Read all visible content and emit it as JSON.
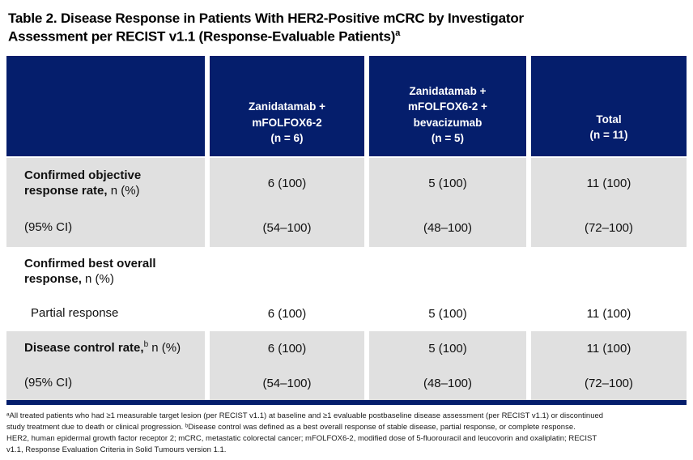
{
  "title": {
    "text": "Table 2. Disease Response in Patients With HER2-Positive mCRC by Investigator\nAssessment per RECIST v1.1 (Response-Evaluable Patients)",
    "sup": "a"
  },
  "colors": {
    "header_navy": "#051e6c",
    "row_gray": "#e0e0e0",
    "row_white": "#ffffff"
  },
  "table": {
    "columns": [
      "",
      "Zanidatamab +\nmFOLFOX6-2\n(n = 6)",
      "Zanidatamab +\nmFOLFOX6-2 +\nbevacizumab\n(n = 5)",
      "Total\n(n = 11)"
    ],
    "rows": [
      {
        "bold": "Confirmed objective\nresponse rate,",
        "sup": "",
        "rest": " n (%)",
        "values": [
          "6 (100)",
          "5 (100)",
          "11 (100)"
        ]
      },
      {
        "bold": "",
        "sup": "",
        "rest": "(95% CI)",
        "values": [
          "(54–100)",
          "(48–100)",
          "(72–100)"
        ]
      },
      {
        "bold": "Confirmed best overall\nresponse,",
        "sup": "",
        "rest": " n (%)",
        "values": [
          "",
          "",
          ""
        ]
      },
      {
        "bold": "",
        "sup": "",
        "rest": "Partial response",
        "values": [
          "6 (100)",
          "5 (100)",
          "11 (100)"
        ]
      },
      {
        "bold": "Disease control rate,",
        "sup": "b",
        "rest": " n (%)",
        "values": [
          "6 (100)",
          "5 (100)",
          "11 (100)"
        ]
      },
      {
        "bold": "",
        "sup": "",
        "rest": "(95% CI)",
        "values": [
          "(54–100)",
          "(48–100)",
          "(72–100)"
        ]
      }
    ]
  },
  "footnotes": {
    "notes": "ᵃAll treated patients who had ≥1 measurable target lesion (per RECIST v1.1) at baseline and ≥1 evaluable postbaseline disease assessment (per RECIST v1.1) or discontinued\nstudy treatment due to death or clinical progression. ᵇDisease control was defined as a best overall response of stable disease, partial response, or complete response.\nHER2, human epidermal growth factor receptor 2; mCRC, metastatic colorectal cancer; mFOLFOX6-2, modified dose of 5-fluorouracil and leucovorin and oxaliplatin; RECIST\nv1.1, Response Evaluation Criteria in Solid Tumours version 1.1."
  }
}
